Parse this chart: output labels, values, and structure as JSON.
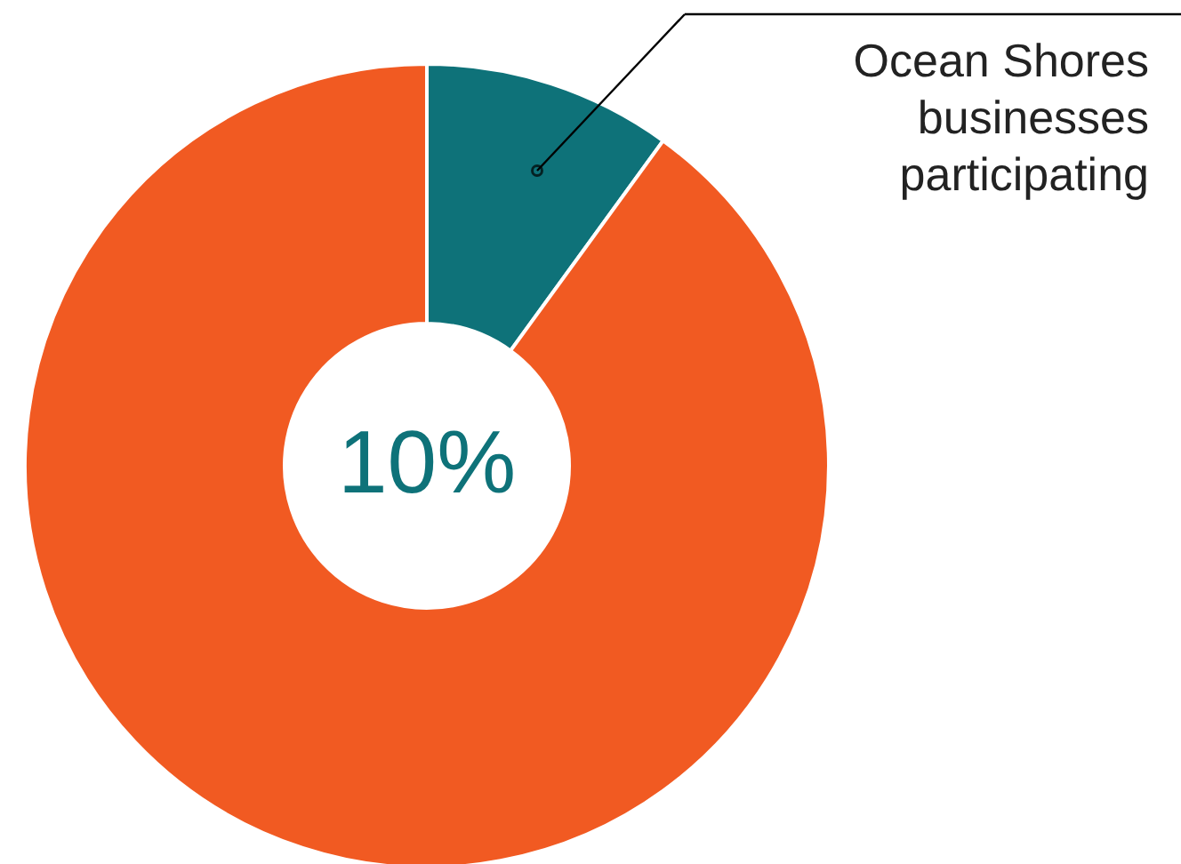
{
  "chart_data": {
    "type": "donut",
    "categories": [
      null,
      null
    ],
    "annotations": [
      "Ocean Shores\nbusinesses\nparticipating"
    ],
    "values": [
      10,
      90
    ],
    "colors": [
      "#0e7279",
      "#f15a22"
    ],
    "value_labels": [
      "10%",
      null
    ]
  }
}
